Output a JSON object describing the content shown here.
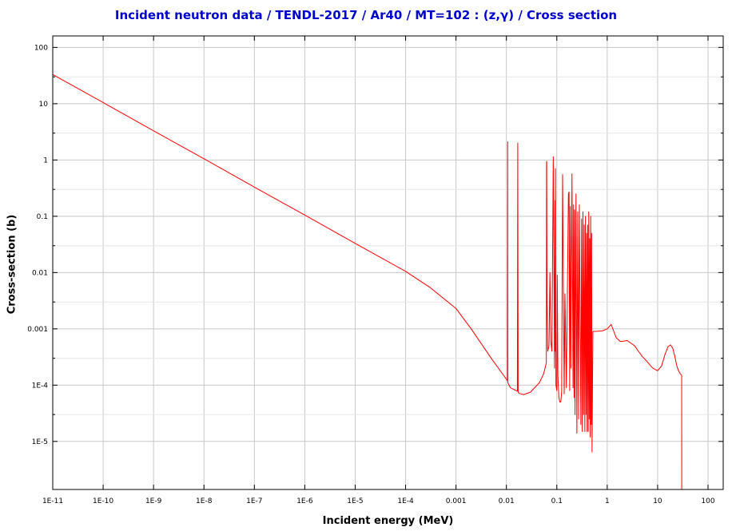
{
  "chart_data": {
    "type": "line",
    "title": "Incident neutron data / TENDL-2017 / Ar40 / MT=102 : (z,γ) / Cross section",
    "xlabel": "Incident energy (MeV)",
    "ylabel": "Cross-section (b)",
    "xscale": "log",
    "yscale": "log",
    "xlim": [
      1e-11,
      200
    ],
    "ylim": [
      1.4e-06,
      160
    ],
    "grid": true,
    "x_ticks": [
      {
        "value": 1e-11,
        "label": "1E-11"
      },
      {
        "value": 1e-10,
        "label": "1E-10"
      },
      {
        "value": 1e-09,
        "label": "1E-9"
      },
      {
        "value": 1e-08,
        "label": "1E-8"
      },
      {
        "value": 1e-07,
        "label": "1E-7"
      },
      {
        "value": 1e-06,
        "label": "1E-6"
      },
      {
        "value": 1e-05,
        "label": "1E-5"
      },
      {
        "value": 0.0001,
        "label": "1E-4"
      },
      {
        "value": 0.001,
        "label": "0.001"
      },
      {
        "value": 0.01,
        "label": "0.01"
      },
      {
        "value": 0.1,
        "label": "0.1"
      },
      {
        "value": 1,
        "label": "1"
      },
      {
        "value": 10,
        "label": "10"
      },
      {
        "value": 100,
        "label": "100"
      }
    ],
    "y_ticks": [
      {
        "value": 100,
        "label": "100"
      },
      {
        "value": 10,
        "label": "10"
      },
      {
        "value": 1,
        "label": "1"
      },
      {
        "value": 0.1,
        "label": "0.1"
      },
      {
        "value": 0.01,
        "label": "0.01"
      },
      {
        "value": 0.001,
        "label": "0.001"
      },
      {
        "value": 0.0001,
        "label": "1E-4"
      },
      {
        "value": 1e-05,
        "label": "1E-5"
      }
    ],
    "series": [
      {
        "color": "#ff0000",
        "x": [
          1e-11,
          1e-10,
          1e-09,
          1e-08,
          1e-07,
          1e-06,
          1e-05,
          0.0001,
          0.0003,
          0.001,
          0.002,
          0.005,
          0.0105,
          0.0106,
          0.0107,
          0.012,
          0.0165,
          0.0168,
          0.0171,
          0.018,
          0.022,
          0.03,
          0.045,
          0.055,
          0.062,
          0.0625,
          0.063,
          0.064,
          0.066,
          0.07,
          0.073,
          0.076,
          0.08,
          0.085,
          0.09,
          0.092,
          0.093,
          0.094,
          0.096,
          0.1,
          0.102,
          0.105,
          0.11,
          0.115,
          0.12,
          0.125,
          0.13,
          0.14,
          0.145,
          0.155,
          0.17,
          0.175,
          0.18,
          0.185,
          0.19,
          0.2,
          0.21,
          0.215,
          0.22,
          0.225,
          0.23,
          0.24,
          0.25,
          0.26,
          0.27,
          0.28,
          0.3,
          0.31,
          0.32,
          0.33,
          0.34,
          0.35,
          0.36,
          0.37,
          0.38,
          0.39,
          0.4,
          0.41,
          0.42,
          0.43,
          0.44,
          0.45,
          0.46,
          0.47,
          0.48,
          0.49,
          0.5,
          0.52,
          0.53,
          0.6,
          0.8,
          1.0,
          1.2,
          1.5,
          1.8,
          2.0,
          2.5,
          3.0,
          3.5,
          4.0,
          5.0,
          6.0,
          8.0,
          10.0,
          12.0,
          14.0,
          16.0,
          18.0,
          20.0,
          22.0,
          24.0,
          26.0,
          28.0,
          30.0,
          30.1,
          30.2,
          200
        ],
        "y": [
          33,
          10.5,
          3.3,
          1.05,
          0.33,
          0.105,
          0.033,
          0.0105,
          0.0055,
          0.0023,
          0.001,
          0.0003,
          0.00012,
          2.1,
          0.00011,
          9e-05,
          7.8e-05,
          2.0,
          7.5e-05,
          7.1e-05,
          6.8e-05,
          7.5e-05,
          0.00011,
          0.00016,
          0.00025,
          0.9,
          0.95,
          0.003,
          0.0004,
          0.0005,
          0.01,
          0.00059,
          0.0004,
          1.15,
          0.0002,
          0.19,
          0.0004,
          0.7,
          0.0001,
          8e-05,
          0.009,
          0.00015,
          6e-05,
          5e-05,
          5e-05,
          8e-05,
          0.55,
          7e-05,
          0.0042,
          9e-05,
          0.25,
          0.27,
          8e-05,
          0.15,
          0.0002,
          0.57,
          9e-05,
          0.16,
          6e-05,
          0.13,
          3e-05,
          0.25,
          1.4e-05,
          0.12,
          2.5e-05,
          0.16,
          2e-05,
          0.09,
          1.5e-05,
          0.12,
          3e-05,
          0.07,
          1.5e-05,
          0.1,
          3e-05,
          0.05,
          1.5e-05,
          0.07,
          1.5e-05,
          0.12,
          2.5e-05,
          0.04,
          1.2e-05,
          0.1,
          2e-05,
          0.05,
          6.5e-06,
          0.0009,
          0.0009,
          0.0009,
          0.00092,
          0.001,
          0.0012,
          0.0007,
          0.0006,
          0.0006,
          0.00062,
          0.00055,
          0.0005,
          0.00042,
          0.00032,
          0.00027,
          0.0002,
          0.00018,
          0.00022,
          0.00035,
          0.00048,
          0.00052,
          0.00045,
          0.00032,
          0.00022,
          0.00018,
          0.00016,
          0.00015,
          1.4e-06,
          1.4e-06,
          1.4e-06
        ]
      }
    ]
  }
}
